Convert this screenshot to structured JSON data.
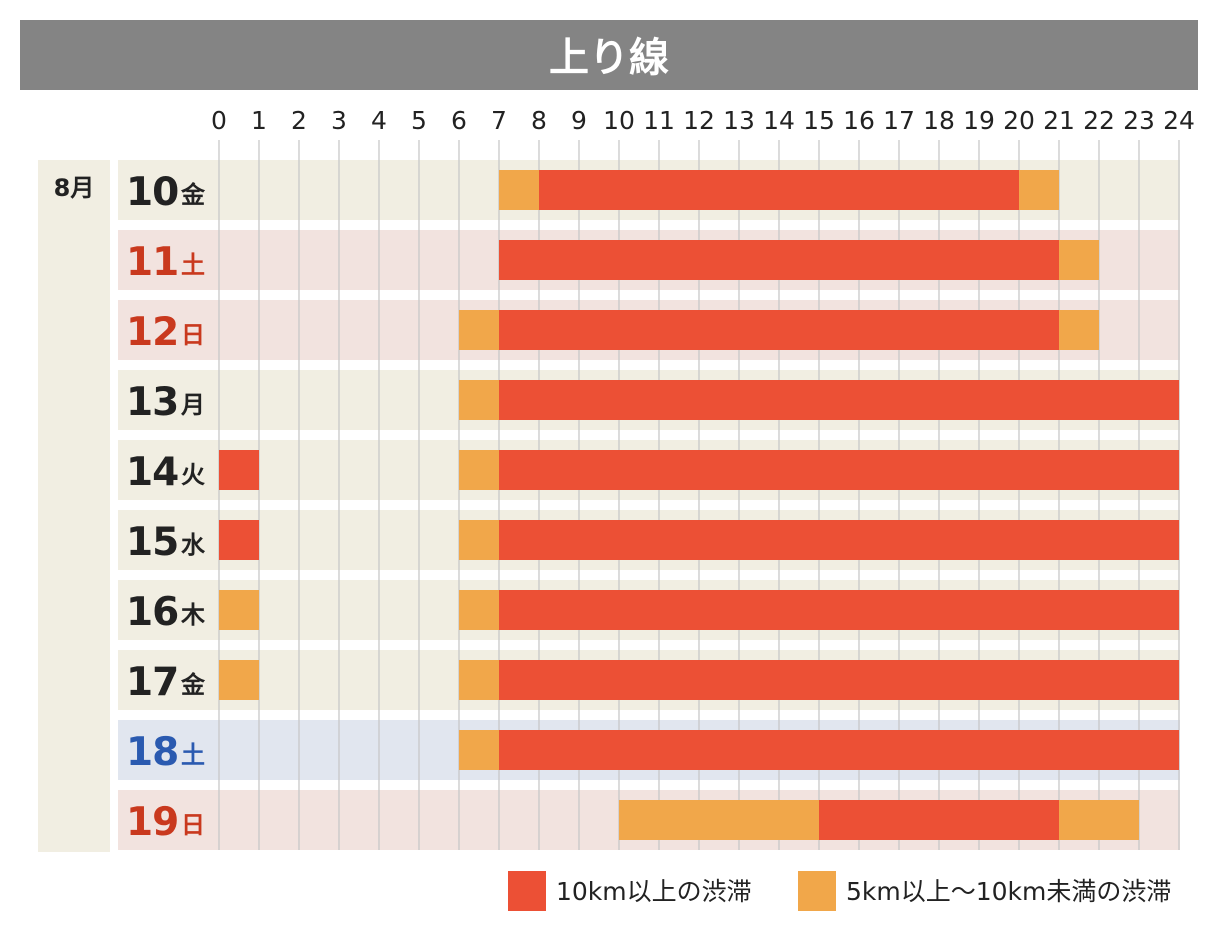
{
  "chart_data": {
    "type": "bar",
    "title": "上り線",
    "month_label": "8月",
    "x_ticks": [
      "0",
      "1",
      "2",
      "3",
      "4",
      "5",
      "6",
      "7",
      "8",
      "9",
      "10",
      "11",
      "12",
      "13",
      "14",
      "15",
      "16",
      "17",
      "18",
      "19",
      "20",
      "21",
      "22",
      "23",
      "24"
    ],
    "xlim": [
      0,
      24
    ],
    "grid": true,
    "legend_position": "bottom-right",
    "colors": {
      "heavy": "#ec5035",
      "light": "#f1a74a",
      "weekday_row": "#f1eee2",
      "saturday_row": "#f2e3df",
      "sunday_row": "#f2e3df",
      "blue_row": "#e1e6ef",
      "month_band": "#f1eee2",
      "title_band": "#848484",
      "weekday_text": "#222222",
      "holiday_text": "#c9391e",
      "blue_text": "#2a5ab0",
      "grid": "#c8c8c8"
    },
    "legend": [
      {
        "key": "heavy",
        "label": "10km以上の渋滞"
      },
      {
        "key": "light",
        "label": "5km以上～10km未満の渋滞"
      }
    ],
    "rows": [
      {
        "day": "10",
        "weekday": "金",
        "style": "weekday",
        "segments": [
          {
            "start": 7,
            "end": 8,
            "level": "light"
          },
          {
            "start": 8,
            "end": 20,
            "level": "heavy"
          },
          {
            "start": 20,
            "end": 21,
            "level": "light"
          }
        ]
      },
      {
        "day": "11",
        "weekday": "土",
        "style": "holiday",
        "segments": [
          {
            "start": 7,
            "end": 21,
            "level": "heavy"
          },
          {
            "start": 21,
            "end": 22,
            "level": "light"
          }
        ]
      },
      {
        "day": "12",
        "weekday": "日",
        "style": "holiday",
        "segments": [
          {
            "start": 6,
            "end": 7,
            "level": "light"
          },
          {
            "start": 7,
            "end": 21,
            "level": "heavy"
          },
          {
            "start": 21,
            "end": 22,
            "level": "light"
          }
        ]
      },
      {
        "day": "13",
        "weekday": "月",
        "style": "weekday",
        "segments": [
          {
            "start": 6,
            "end": 7,
            "level": "light"
          },
          {
            "start": 7,
            "end": 24,
            "level": "heavy"
          }
        ]
      },
      {
        "day": "14",
        "weekday": "火",
        "style": "weekday",
        "segments": [
          {
            "start": 0,
            "end": 1,
            "level": "heavy"
          },
          {
            "start": 6,
            "end": 7,
            "level": "light"
          },
          {
            "start": 7,
            "end": 24,
            "level": "heavy"
          }
        ]
      },
      {
        "day": "15",
        "weekday": "水",
        "style": "weekday",
        "segments": [
          {
            "start": 0,
            "end": 1,
            "level": "heavy"
          },
          {
            "start": 6,
            "end": 7,
            "level": "light"
          },
          {
            "start": 7,
            "end": 24,
            "level": "heavy"
          }
        ]
      },
      {
        "day": "16",
        "weekday": "木",
        "style": "weekday",
        "segments": [
          {
            "start": 0,
            "end": 1,
            "level": "light"
          },
          {
            "start": 6,
            "end": 7,
            "level": "light"
          },
          {
            "start": 7,
            "end": 24,
            "level": "heavy"
          }
        ]
      },
      {
        "day": "17",
        "weekday": "金",
        "style": "weekday",
        "segments": [
          {
            "start": 0,
            "end": 1,
            "level": "light"
          },
          {
            "start": 6,
            "end": 7,
            "level": "light"
          },
          {
            "start": 7,
            "end": 24,
            "level": "heavy"
          }
        ]
      },
      {
        "day": "18",
        "weekday": "土",
        "style": "blue",
        "segments": [
          {
            "start": 6,
            "end": 7,
            "level": "light"
          },
          {
            "start": 7,
            "end": 24,
            "level": "heavy"
          }
        ]
      },
      {
        "day": "19",
        "weekday": "日",
        "style": "holiday",
        "segments": [
          {
            "start": 10,
            "end": 15,
            "level": "light"
          },
          {
            "start": 15,
            "end": 21,
            "level": "heavy"
          },
          {
            "start": 21,
            "end": 23,
            "level": "light"
          }
        ]
      }
    ]
  }
}
